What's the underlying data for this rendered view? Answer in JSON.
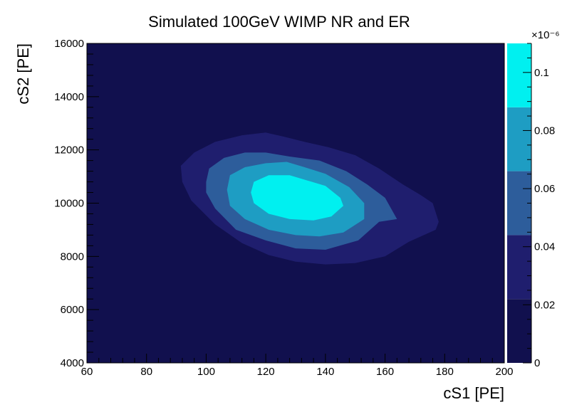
{
  "chart_data": {
    "type": "heatmap",
    "subtype": "filled-contour",
    "title": "Simulated 100GeV WIMP NR and ER",
    "xlabel": "cS1  [PE]",
    "ylabel": "cS2  [PE]",
    "xlim": [
      60,
      200
    ],
    "ylim": [
      4000,
      16000
    ],
    "x_ticks": [
      "60",
      "80",
      "100",
      "120",
      "140",
      "160",
      "180",
      "200"
    ],
    "y_ticks": [
      "4000",
      "6000",
      "8000",
      "10000",
      "12000",
      "14000",
      "16000"
    ],
    "colorbar": {
      "exponent_label": "×10⁻⁶",
      "range": [
        0,
        0.11
      ],
      "ticks": [
        "0",
        "0.02",
        "0.04",
        "0.06",
        "0.08",
        "0.1"
      ],
      "levels": [
        0,
        0.022,
        0.044,
        0.066,
        0.088,
        0.11
      ],
      "colors": [
        "#11104e",
        "#1f1e6e",
        "#2d5d9b",
        "#1e9dc3",
        "#00f0f0"
      ]
    },
    "contours": [
      {
        "level_min": 0.022,
        "points": [
          [
            91.5,
            11400
          ],
          [
            96,
            11900
          ],
          [
            103,
            12300
          ],
          [
            112,
            12550
          ],
          [
            120,
            12650
          ],
          [
            126,
            12500
          ],
          [
            133,
            12300
          ],
          [
            141,
            12100
          ],
          [
            150,
            11800
          ],
          [
            158,
            11300
          ],
          [
            166,
            10700
          ],
          [
            172,
            10300
          ],
          [
            176,
            10000
          ],
          [
            178,
            9300
          ],
          [
            177,
            9000
          ],
          [
            168,
            8550
          ],
          [
            160,
            8000
          ],
          [
            150,
            7750
          ],
          [
            140,
            7700
          ],
          [
            130,
            7800
          ],
          [
            121,
            8050
          ],
          [
            112,
            8500
          ],
          [
            103,
            9200
          ],
          [
            95,
            10100
          ],
          [
            92,
            10800
          ]
        ]
      },
      {
        "level_min": 0.044,
        "points": [
          [
            100,
            10800
          ],
          [
            101,
            11300
          ],
          [
            106,
            11700
          ],
          [
            113,
            11900
          ],
          [
            120,
            11900
          ],
          [
            128,
            11750
          ],
          [
            138,
            11600
          ],
          [
            147,
            11200
          ],
          [
            154,
            10700
          ],
          [
            160,
            10200
          ],
          [
            164,
            9400
          ],
          [
            158,
            9300
          ],
          [
            151,
            8600
          ],
          [
            140,
            8250
          ],
          [
            130,
            8300
          ],
          [
            120,
            8600
          ],
          [
            110,
            9000
          ],
          [
            103,
            9800
          ],
          [
            100,
            10400
          ]
        ]
      },
      {
        "level_min": 0.066,
        "points": [
          [
            107,
            10500
          ],
          [
            108,
            11050
          ],
          [
            113,
            11350
          ],
          [
            120,
            11500
          ],
          [
            127,
            11550
          ],
          [
            133,
            11350
          ],
          [
            140,
            11100
          ],
          [
            148,
            10600
          ],
          [
            153,
            10000
          ],
          [
            153,
            9400
          ],
          [
            146,
            8900
          ],
          [
            138,
            8750
          ],
          [
            130,
            8800
          ],
          [
            121,
            9000
          ],
          [
            113,
            9400
          ],
          [
            108,
            9900
          ]
        ]
      },
      {
        "level_min": 0.088,
        "points": [
          [
            115,
            10400
          ],
          [
            116,
            10800
          ],
          [
            121,
            11050
          ],
          [
            128,
            11050
          ],
          [
            134,
            10850
          ],
          [
            140,
            10650
          ],
          [
            145,
            10200
          ],
          [
            146,
            9900
          ],
          [
            142,
            9500
          ],
          [
            136,
            9350
          ],
          [
            128,
            9400
          ],
          [
            121,
            9600
          ],
          [
            116,
            10000
          ]
        ]
      }
    ]
  }
}
